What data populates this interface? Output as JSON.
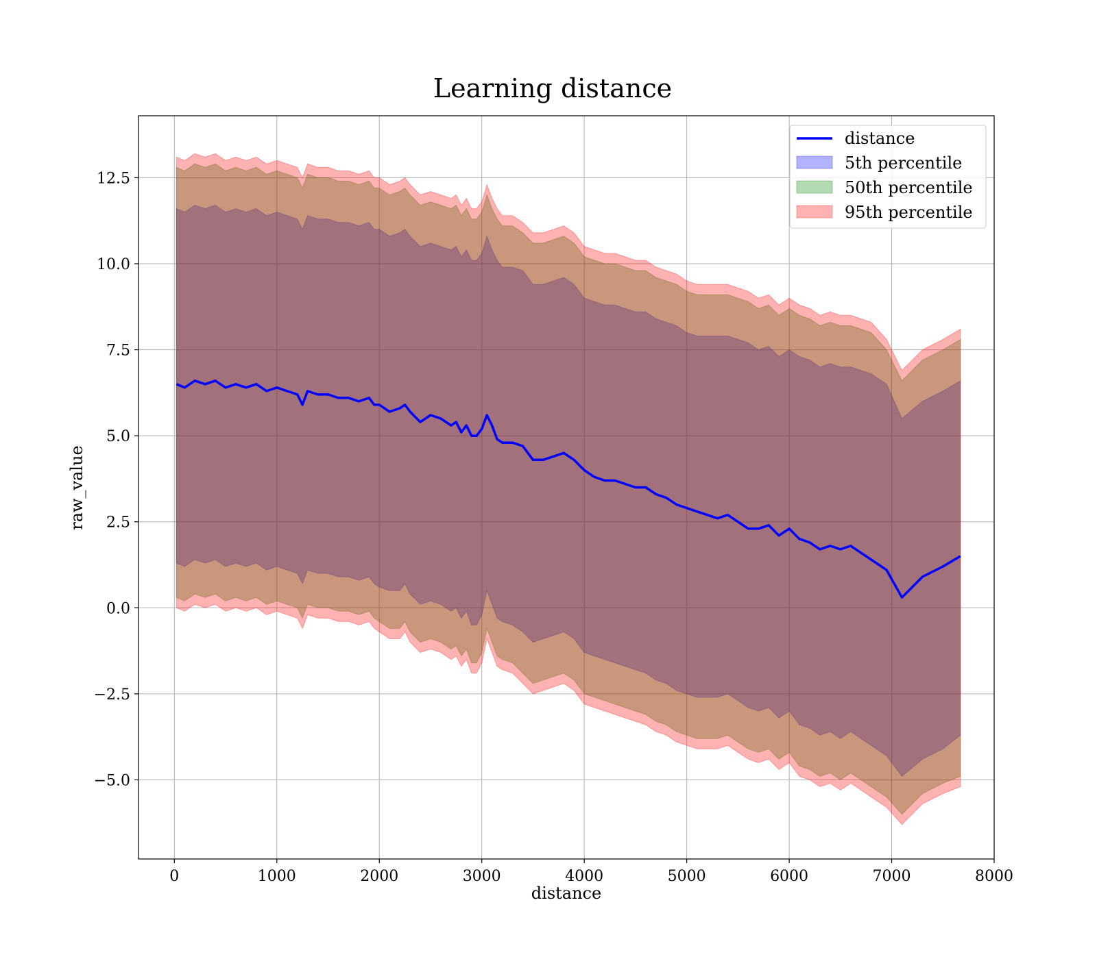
{
  "chart_data": {
    "type": "area",
    "title": "Learning distance",
    "xlabel": "distance",
    "ylabel": "raw_value",
    "xlim": [
      -350,
      8000
    ],
    "ylim": [
      -7.3,
      14.3
    ],
    "xticks": [
      0,
      1000,
      2000,
      3000,
      4000,
      5000,
      6000,
      7000,
      8000
    ],
    "xtick_labels": [
      "0",
      "1000",
      "2000",
      "3000",
      "4000",
      "5000",
      "6000",
      "7000",
      "8000"
    ],
    "yticks": [
      -5.0,
      -2.5,
      0.0,
      2.5,
      5.0,
      7.5,
      10.0,
      12.5
    ],
    "ytick_labels": [
      "−5.0",
      "−2.5",
      "0.0",
      "2.5",
      "5.0",
      "7.5",
      "10.0",
      "12.5"
    ],
    "grid": true,
    "legend_position": "top-right",
    "legend": [
      "distance",
      "5th percentile",
      "50th percentile",
      "95th percentile"
    ],
    "colors": {
      "line": "#0000ff",
      "band_5th": "#0000ff",
      "band_50th": "#008000",
      "band_95th": "#ff0000",
      "grid": "#b0b0b0"
    },
    "x": [
      20,
      100,
      200,
      300,
      400,
      500,
      600,
      700,
      800,
      900,
      1000,
      1100,
      1200,
      1250,
      1300,
      1400,
      1500,
      1600,
      1700,
      1800,
      1900,
      1950,
      2000,
      2100,
      2200,
      2250,
      2300,
      2400,
      2500,
      2600,
      2700,
      2750,
      2800,
      2850,
      2900,
      2950,
      3000,
      3050,
      3100,
      3150,
      3200,
      3300,
      3400,
      3500,
      3600,
      3700,
      3800,
      3900,
      4000,
      4100,
      4200,
      4300,
      4400,
      4500,
      4600,
      4700,
      4800,
      4900,
      5000,
      5100,
      5200,
      5300,
      5400,
      5500,
      5600,
      5700,
      5800,
      5900,
      6000,
      6100,
      6200,
      6300,
      6400,
      6500,
      6600,
      6700,
      6800,
      6950,
      7100,
      7300,
      7500,
      7670
    ],
    "series": [
      {
        "name": "distance",
        "values": [
          6.5,
          6.4,
          6.6,
          6.5,
          6.6,
          6.4,
          6.5,
          6.4,
          6.5,
          6.3,
          6.4,
          6.3,
          6.2,
          5.9,
          6.3,
          6.2,
          6.2,
          6.1,
          6.1,
          6.0,
          6.1,
          5.9,
          5.9,
          5.7,
          5.8,
          5.9,
          5.7,
          5.4,
          5.6,
          5.5,
          5.3,
          5.4,
          5.1,
          5.3,
          5.0,
          5.0,
          5.2,
          5.6,
          5.3,
          4.9,
          4.8,
          4.8,
          4.7,
          4.3,
          4.3,
          4.4,
          4.5,
          4.3,
          4.0,
          3.8,
          3.7,
          3.7,
          3.6,
          3.5,
          3.5,
          3.3,
          3.2,
          3.0,
          2.9,
          2.8,
          2.7,
          2.6,
          2.7,
          2.5,
          2.3,
          2.3,
          2.4,
          2.1,
          2.3,
          2.0,
          1.9,
          1.7,
          1.8,
          1.7,
          1.8,
          1.6,
          1.4,
          1.1,
          0.3,
          0.9,
          1.2,
          1.5
        ]
      }
    ],
    "bands": [
      {
        "name": "5th percentile",
        "lower": [
          1.3,
          1.2,
          1.4,
          1.3,
          1.4,
          1.2,
          1.3,
          1.2,
          1.3,
          1.1,
          1.2,
          1.1,
          1.0,
          0.7,
          1.1,
          1.0,
          1.0,
          0.9,
          0.9,
          0.8,
          0.9,
          0.7,
          0.6,
          0.5,
          0.5,
          0.7,
          0.4,
          0.1,
          0.2,
          0.1,
          -0.1,
          0.0,
          -0.3,
          -0.1,
          -0.5,
          -0.5,
          -0.2,
          0.5,
          0.1,
          -0.3,
          -0.4,
          -0.5,
          -0.7,
          -1.0,
          -0.9,
          -0.8,
          -0.7,
          -0.9,
          -1.3,
          -1.4,
          -1.5,
          -1.6,
          -1.7,
          -1.8,
          -1.9,
          -2.1,
          -2.2,
          -2.4,
          -2.5,
          -2.6,
          -2.6,
          -2.6,
          -2.5,
          -2.7,
          -2.9,
          -3.0,
          -2.9,
          -3.2,
          -3.0,
          -3.4,
          -3.5,
          -3.7,
          -3.6,
          -3.8,
          -3.6,
          -3.8,
          -4.0,
          -4.3,
          -4.9,
          -4.4,
          -4.1,
          -3.7
        ],
        "upper": [
          11.6,
          11.5,
          11.7,
          11.6,
          11.7,
          11.5,
          11.6,
          11.5,
          11.6,
          11.4,
          11.5,
          11.4,
          11.3,
          11.0,
          11.4,
          11.3,
          11.3,
          11.2,
          11.2,
          11.1,
          11.2,
          11.0,
          11.0,
          10.8,
          10.9,
          11.0,
          10.8,
          10.5,
          10.6,
          10.5,
          10.4,
          10.5,
          10.2,
          10.4,
          10.1,
          10.1,
          10.3,
          10.8,
          10.4,
          10.1,
          9.9,
          9.9,
          9.8,
          9.4,
          9.4,
          9.5,
          9.6,
          9.4,
          9.0,
          8.9,
          8.8,
          8.8,
          8.7,
          8.6,
          8.6,
          8.4,
          8.3,
          8.2,
          8.0,
          7.9,
          7.9,
          7.9,
          7.9,
          7.8,
          7.7,
          7.5,
          7.6,
          7.3,
          7.5,
          7.3,
          7.2,
          7.0,
          7.1,
          7.0,
          7.0,
          6.9,
          6.8,
          6.5,
          5.5,
          6.0,
          6.3,
          6.6
        ]
      },
      {
        "name": "50th percentile",
        "lower": [
          0.3,
          0.2,
          0.4,
          0.3,
          0.4,
          0.2,
          0.3,
          0.2,
          0.3,
          0.1,
          0.2,
          0.1,
          0.0,
          -0.3,
          0.1,
          0.0,
          0.0,
          -0.1,
          -0.1,
          -0.2,
          -0.1,
          -0.3,
          -0.4,
          -0.6,
          -0.6,
          -0.4,
          -0.7,
          -1.0,
          -0.9,
          -1.0,
          -1.2,
          -1.1,
          -1.4,
          -1.2,
          -1.6,
          -1.6,
          -1.3,
          -0.6,
          -1.0,
          -1.4,
          -1.5,
          -1.6,
          -1.9,
          -2.2,
          -2.1,
          -2.0,
          -1.9,
          -2.1,
          -2.5,
          -2.6,
          -2.7,
          -2.8,
          -2.9,
          -3.0,
          -3.1,
          -3.3,
          -3.4,
          -3.6,
          -3.7,
          -3.8,
          -3.8,
          -3.8,
          -3.7,
          -3.9,
          -4.1,
          -4.2,
          -4.1,
          -4.4,
          -4.2,
          -4.6,
          -4.7,
          -4.9,
          -4.8,
          -5.0,
          -4.8,
          -5.0,
          -5.2,
          -5.5,
          -6.0,
          -5.4,
          -5.1,
          -4.9
        ],
        "upper": [
          12.8,
          12.7,
          12.9,
          12.8,
          12.9,
          12.7,
          12.8,
          12.7,
          12.8,
          12.6,
          12.7,
          12.6,
          12.5,
          12.2,
          12.6,
          12.5,
          12.5,
          12.4,
          12.4,
          12.3,
          12.4,
          12.2,
          12.2,
          12.0,
          12.1,
          12.2,
          12.0,
          11.7,
          11.8,
          11.7,
          11.6,
          11.7,
          11.4,
          11.6,
          11.3,
          11.3,
          11.5,
          12.0,
          11.6,
          11.3,
          11.1,
          11.1,
          10.9,
          10.6,
          10.6,
          10.7,
          10.8,
          10.6,
          10.2,
          10.1,
          10.0,
          10.0,
          9.9,
          9.8,
          9.8,
          9.6,
          9.5,
          9.4,
          9.2,
          9.1,
          9.1,
          9.1,
          9.1,
          9.0,
          8.9,
          8.7,
          8.8,
          8.5,
          8.7,
          8.5,
          8.4,
          8.2,
          8.3,
          8.2,
          8.2,
          8.1,
          8.0,
          7.5,
          6.6,
          7.2,
          7.5,
          7.8
        ]
      },
      {
        "name": "95th percentile",
        "lower": [
          0.0,
          -0.1,
          0.1,
          0.0,
          0.1,
          -0.1,
          0.0,
          -0.1,
          0.0,
          -0.2,
          -0.1,
          -0.2,
          -0.3,
          -0.6,
          -0.2,
          -0.3,
          -0.3,
          -0.4,
          -0.4,
          -0.5,
          -0.4,
          -0.6,
          -0.7,
          -0.9,
          -0.9,
          -0.7,
          -1.0,
          -1.3,
          -1.2,
          -1.3,
          -1.5,
          -1.4,
          -1.7,
          -1.5,
          -1.9,
          -1.9,
          -1.6,
          -0.9,
          -1.3,
          -1.7,
          -1.8,
          -1.9,
          -2.2,
          -2.5,
          -2.4,
          -2.3,
          -2.2,
          -2.4,
          -2.8,
          -2.9,
          -3.0,
          -3.1,
          -3.2,
          -3.3,
          -3.4,
          -3.6,
          -3.7,
          -3.9,
          -4.0,
          -4.1,
          -4.1,
          -4.1,
          -4.0,
          -4.2,
          -4.4,
          -4.5,
          -4.4,
          -4.7,
          -4.5,
          -4.9,
          -5.0,
          -5.2,
          -5.1,
          -5.3,
          -5.1,
          -5.3,
          -5.5,
          -5.8,
          -6.3,
          -5.7,
          -5.4,
          -5.2
        ],
        "upper": [
          13.1,
          13.0,
          13.2,
          13.1,
          13.2,
          13.0,
          13.1,
          13.0,
          13.1,
          12.9,
          13.0,
          12.9,
          12.8,
          12.5,
          12.9,
          12.8,
          12.8,
          12.7,
          12.7,
          12.6,
          12.7,
          12.5,
          12.5,
          12.3,
          12.4,
          12.5,
          12.3,
          12.0,
          12.1,
          12.0,
          11.9,
          12.0,
          11.7,
          11.9,
          11.6,
          11.6,
          11.8,
          12.3,
          11.9,
          11.6,
          11.4,
          11.4,
          11.2,
          10.9,
          10.9,
          11.0,
          11.1,
          10.9,
          10.5,
          10.4,
          10.3,
          10.3,
          10.2,
          10.1,
          10.1,
          9.9,
          9.8,
          9.7,
          9.5,
          9.4,
          9.4,
          9.4,
          9.4,
          9.3,
          9.2,
          9.0,
          9.1,
          8.8,
          9.0,
          8.8,
          8.7,
          8.5,
          8.6,
          8.5,
          8.5,
          8.4,
          8.3,
          7.8,
          6.9,
          7.5,
          7.8,
          8.1
        ]
      }
    ]
  }
}
